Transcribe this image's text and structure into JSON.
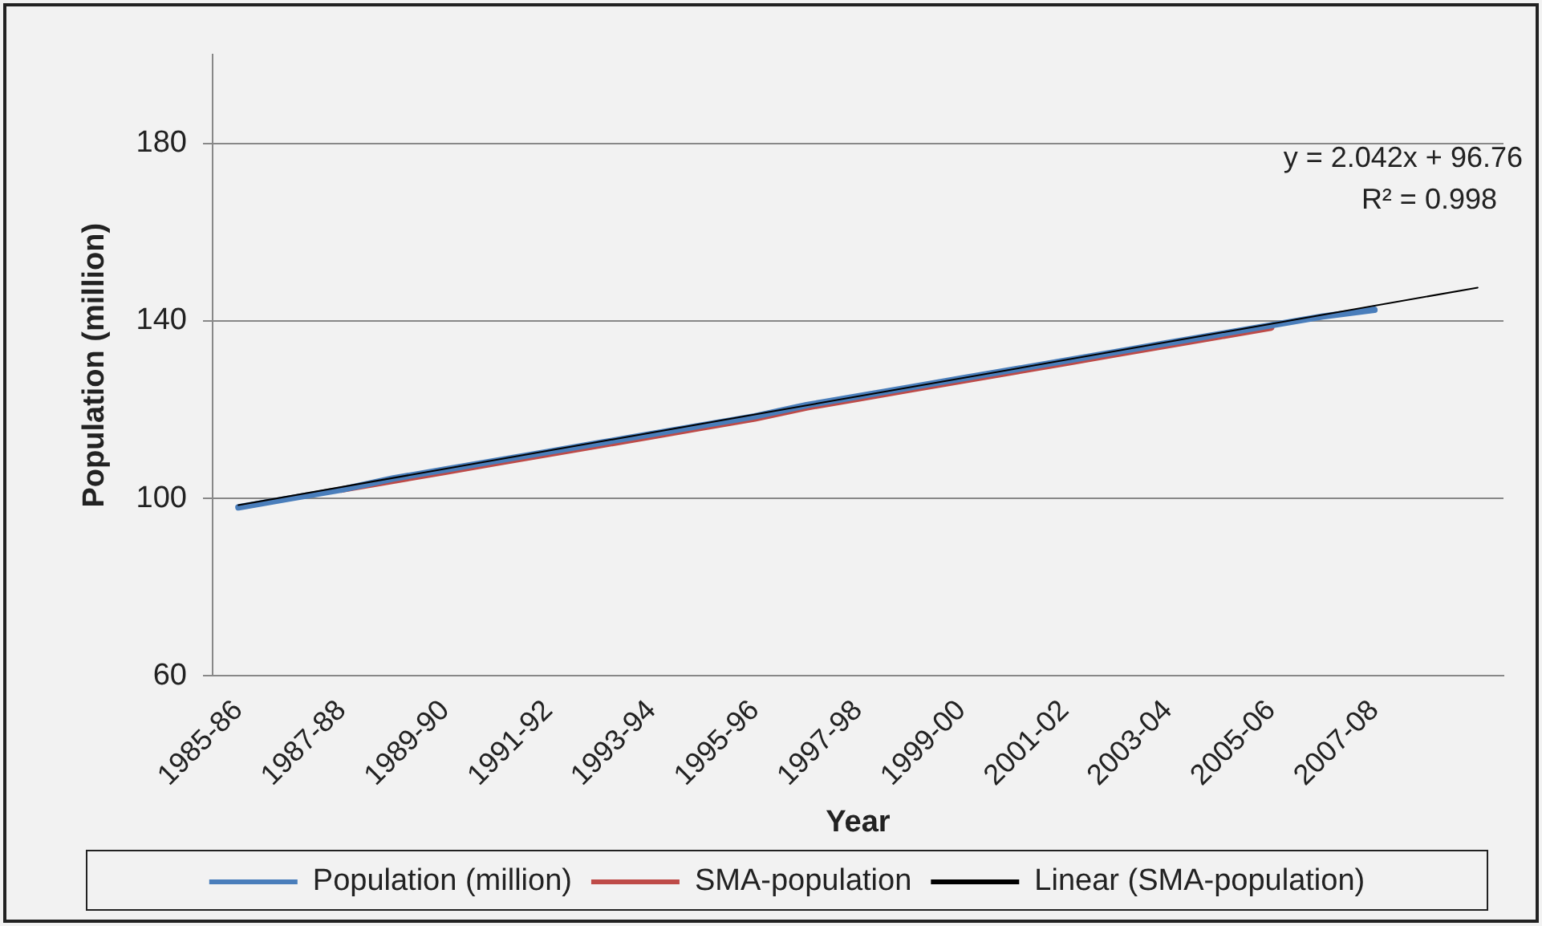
{
  "chart_data": {
    "type": "line",
    "xlabel": "Year",
    "ylabel": "Population (million)",
    "categories": [
      "1985-86",
      null,
      "1987-88",
      null,
      "1989-90",
      null,
      "1991-92",
      null,
      "1993-94",
      null,
      "1995-96",
      null,
      "1997-98",
      null,
      "1999-00",
      null,
      "2001-02",
      null,
      "2003-04",
      null,
      "2005-06",
      null,
      "2007-08",
      null,
      null
    ],
    "series": [
      {
        "name": "Population (million)",
        "color": "#4a7ebb",
        "values": [
          98,
          100,
          102,
          104.5,
          106.5,
          108.5,
          110.5,
          112.5,
          114.5,
          116.5,
          118.5,
          121,
          123,
          125,
          127,
          129,
          131,
          133,
          135,
          137,
          139,
          141,
          142.5,
          null,
          null
        ]
      },
      {
        "name": "SMA-population",
        "color": "#be4b48",
        "values": [
          null,
          null,
          102,
          104,
          106,
          108,
          110,
          112,
          114,
          116,
          118,
          120.5,
          122.5,
          124.5,
          126.5,
          128.5,
          130.5,
          132.5,
          134.5,
          136.5,
          138.5,
          null,
          null,
          null,
          null
        ]
      },
      {
        "name": "Linear (SMA-population)",
        "color": "#000000",
        "values": [
          98.5,
          null,
          null,
          null,
          null,
          null,
          null,
          null,
          null,
          null,
          null,
          null,
          null,
          null,
          null,
          null,
          null,
          null,
          null,
          null,
          null,
          null,
          null,
          null,
          147.5
        ]
      }
    ],
    "ylim": [
      60,
      200
    ],
    "yticks": [
      60,
      100,
      140,
      180
    ],
    "grid": "y",
    "legend": "bottom",
    "marker": "none",
    "annotations": [
      "y = 2.042x + 96.76",
      "R² = 0.998"
    ]
  }
}
